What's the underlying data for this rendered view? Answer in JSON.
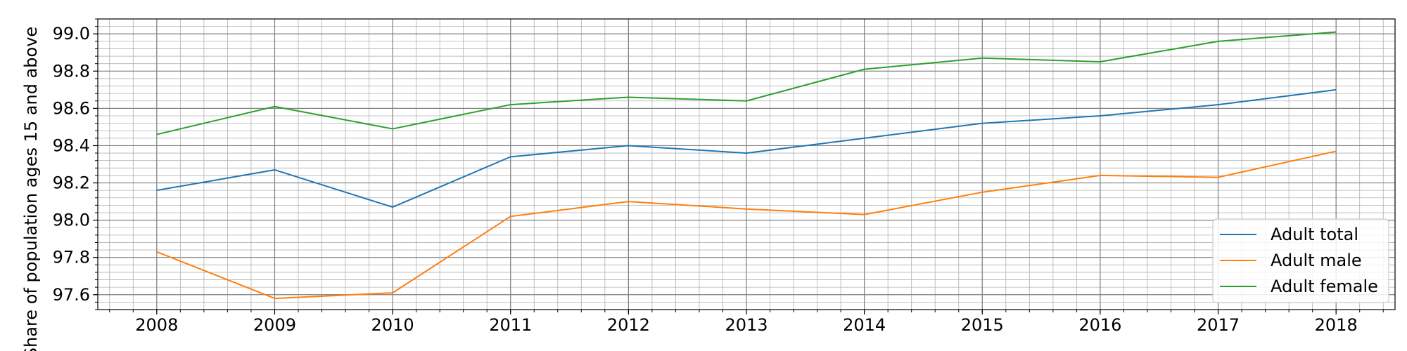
{
  "chart_data": {
    "type": "line",
    "title": "",
    "xlabel": "",
    "ylabel": "Share of population ages 15 and above",
    "x": [
      2008,
      2009,
      2010,
      2011,
      2012,
      2013,
      2014,
      2015,
      2016,
      2017,
      2018
    ],
    "xlim": [
      2007.5,
      2018.5
    ],
    "ylim": [
      97.52,
      99.08
    ],
    "x_ticks": [
      2008,
      2009,
      2010,
      2011,
      2012,
      2013,
      2014,
      2015,
      2016,
      2017,
      2018
    ],
    "x_tick_labels": [
      "2008",
      "2009",
      "2010",
      "2011",
      "2012",
      "2013",
      "2014",
      "2015",
      "2016",
      "2017",
      "2018"
    ],
    "y_ticks": [
      97.6,
      97.8,
      98.0,
      98.2,
      98.4,
      98.6,
      98.8,
      99.0
    ],
    "y_tick_labels": [
      "97.6",
      "97.8",
      "98.0",
      "98.2",
      "98.4",
      "98.6",
      "98.8",
      "99.0"
    ],
    "grid": true,
    "minor_grid": true,
    "legend_position": "bottom-right",
    "series": [
      {
        "name": "Adult total",
        "color": "#1f77b4",
        "values": [
          98.16,
          98.27,
          98.07,
          98.34,
          98.4,
          98.36,
          98.44,
          98.52,
          98.56,
          98.62,
          98.7
        ]
      },
      {
        "name": "Adult male",
        "color": "#ff7f0e",
        "values": [
          97.83,
          97.58,
          97.61,
          98.02,
          98.1,
          98.06,
          98.03,
          98.15,
          98.24,
          98.23,
          98.37
        ]
      },
      {
        "name": "Adult female",
        "color": "#2ca02c",
        "values": [
          98.46,
          98.61,
          98.49,
          98.62,
          98.66,
          98.64,
          98.81,
          98.87,
          98.85,
          98.96,
          99.01
        ]
      }
    ]
  }
}
